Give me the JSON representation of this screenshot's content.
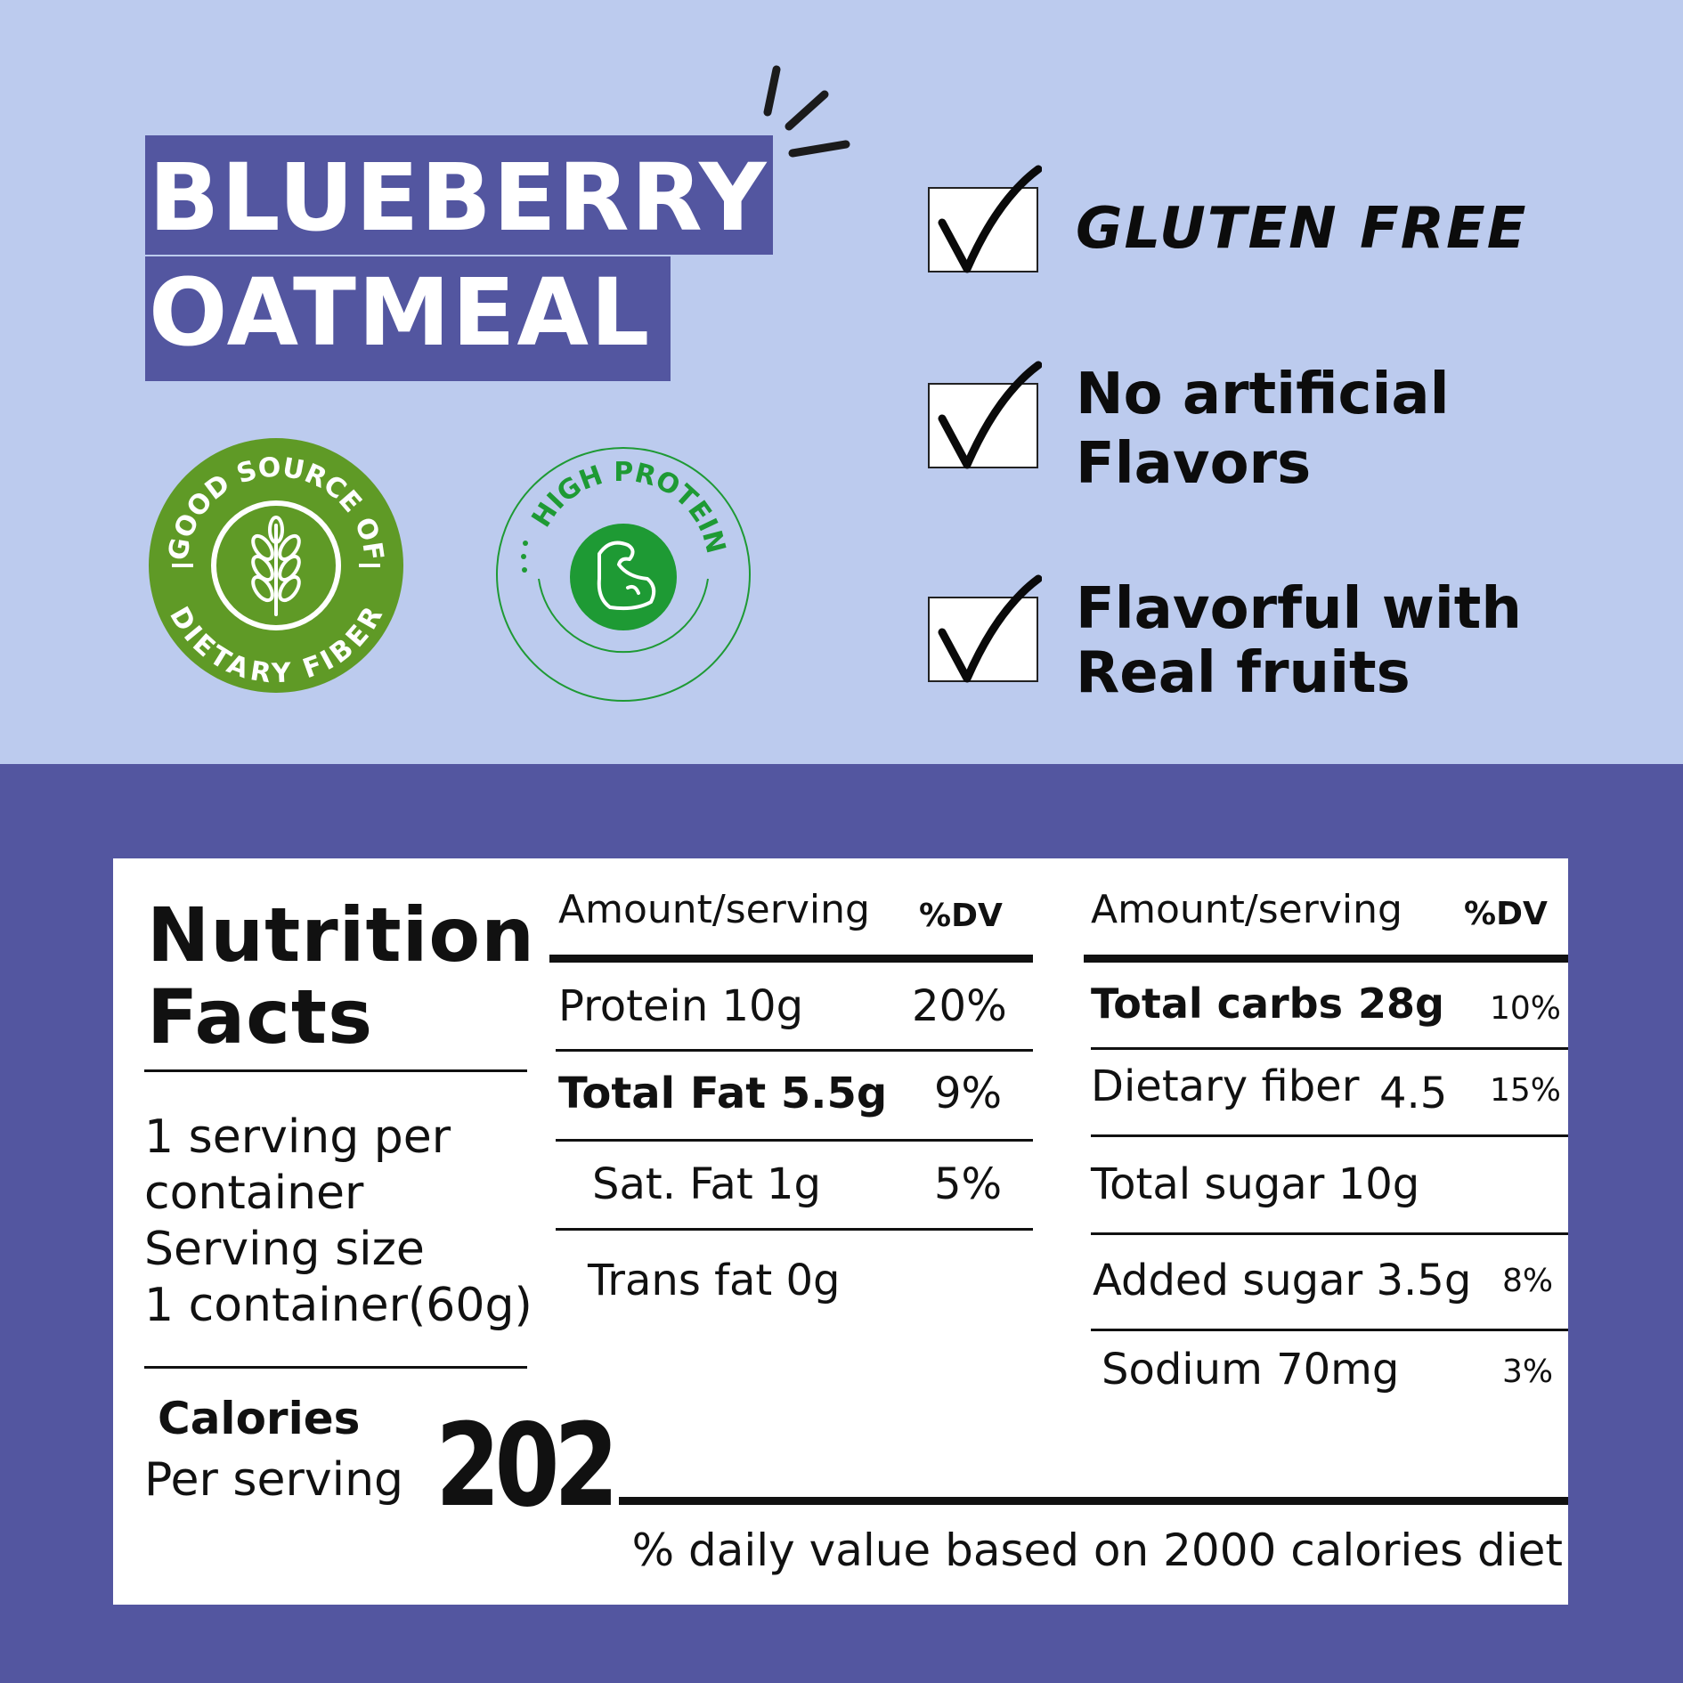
{
  "product": {
    "title_line1": "BLUEBERRY",
    "title_line2": "OATMEAL"
  },
  "badges": {
    "fiber_text_top": "GOOD SOURCE OF",
    "fiber_text_bottom": "DIETARY FIBER",
    "protein_text": "HIGH PROTEIN"
  },
  "features": {
    "f1": "GLUTEN FREE",
    "f2_line1": "No artificial",
    "f2_line2": "Flavors",
    "f3_line1": "Flavorful with",
    "f3_line2": "Real fruits"
  },
  "nutrition": {
    "title_line1": "Nutrition",
    "title_line2": "Facts",
    "serving_line1": "1 serving per",
    "serving_line2": "container",
    "serving_line3": "Serving size",
    "serving_line4": "1 container(60g)",
    "calories_label": "Calories",
    "per_serving": "Per serving",
    "calories_value": "202",
    "footnote": "% daily value based on 2000 calories diet",
    "col1": {
      "header_amount": "Amount/serving",
      "header_dv": "%DV",
      "protein": "Protein 10g",
      "protein_dv": "20%",
      "total_fat": "Total Fat 5.5g",
      "total_fat_dv": "9%",
      "sat_fat": "Sat. Fat 1g",
      "sat_fat_dv": "5%",
      "trans_fat": "Trans fat 0g"
    },
    "col2": {
      "header_amount": "Amount/serving",
      "header_dv": "%DV",
      "total_carbs": "Total carbs",
      "total_carbs_amount": "28g",
      "total_carbs_dv": "10%",
      "fiber": "Dietary fiber",
      "fiber_amount": "4.5",
      "fiber_dv": "15%",
      "total_sugar": "Total sugar 10g",
      "added_sugar": "Added sugar 3.5g",
      "added_sugar_dv": "8%",
      "sodium": "Sodium 70mg",
      "sodium_dv": "3%"
    }
  },
  "colors": {
    "top_bg": "#bccbee",
    "bottom_bg": "#5356a0",
    "fiber_green": "#5f9a26",
    "protein_green": "#1e9a34"
  }
}
